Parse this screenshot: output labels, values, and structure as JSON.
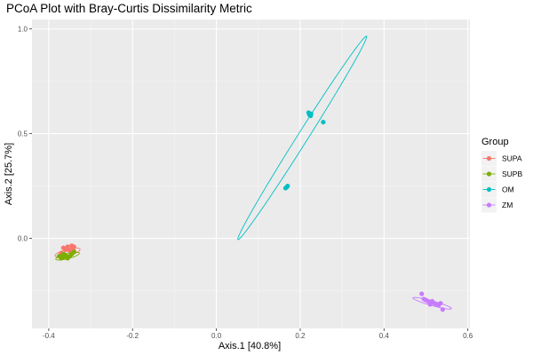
{
  "chart_data": {
    "type": "scatter",
    "title": "PCoA Plot with Bray-Curtis Dissimilarity Metric",
    "xlabel": "Axis.1   [40.8%]",
    "ylabel": "Axis.2   [25.7%]",
    "xlim": [
      -0.44,
      0.605
    ],
    "ylim": [
      -0.43,
      1.045
    ],
    "x_ticks": [
      -0.4,
      -0.2,
      0.0,
      0.2,
      0.4,
      0.6
    ],
    "x_tick_labels": [
      "-0.4",
      "-0.2",
      "0.0",
      "0.2",
      "0.4",
      "0.6"
    ],
    "y_ticks": [
      0.0,
      0.5,
      1.0
    ],
    "y_tick_labels": [
      "0.0",
      "0.5",
      "1.0"
    ],
    "grid": true,
    "legend_title": "Group",
    "legend_position": "right",
    "series": [
      {
        "name": "SUPA",
        "color": "#F8766D",
        "points": [
          [
            -0.355,
            -0.04
          ],
          [
            -0.345,
            -0.035
          ],
          [
            -0.34,
            -0.04
          ],
          [
            -0.365,
            -0.045
          ],
          [
            -0.36,
            -0.055
          ],
          [
            -0.37,
            -0.07
          ],
          [
            -0.35,
            -0.06
          ],
          [
            -0.345,
            -0.05
          ],
          [
            -0.34,
            -0.06
          ]
        ],
        "ellipse": {
          "cx": -0.355,
          "cy": -0.068,
          "rx": 0.034,
          "ry": 0.014,
          "angle": 32
        }
      },
      {
        "name": "SUPB",
        "color": "#7CAE00",
        "points": [
          [
            -0.375,
            -0.085
          ],
          [
            -0.365,
            -0.09
          ],
          [
            -0.36,
            -0.08
          ],
          [
            -0.355,
            -0.095
          ],
          [
            -0.35,
            -0.085
          ],
          [
            -0.345,
            -0.075
          ],
          [
            -0.34,
            -0.065
          ],
          [
            -0.365,
            -0.075
          ],
          [
            -0.37,
            -0.095
          ]
        ],
        "ellipse": {
          "cx": -0.355,
          "cy": -0.085,
          "rx": 0.032,
          "ry": 0.011,
          "angle": 30
        }
      },
      {
        "name": "OM",
        "color": "#00BFC4",
        "points": [
          [
            0.165,
            0.24
          ],
          [
            0.17,
            0.25
          ],
          [
            0.168,
            0.245
          ],
          [
            0.222,
            0.59
          ],
          [
            0.225,
            0.585
          ],
          [
            0.22,
            0.6
          ],
          [
            0.226,
            0.595
          ],
          [
            0.255,
            0.555
          ]
        ],
        "ellipse": {
          "cx": 0.205,
          "cy": 0.48,
          "rx": 0.51,
          "ry": 0.014,
          "angle": 72.5
        }
      },
      {
        "name": "ZM",
        "color": "#C77CFF",
        "points": [
          [
            0.49,
            -0.265
          ],
          [
            0.495,
            -0.29
          ],
          [
            0.505,
            -0.3
          ],
          [
            0.51,
            -0.305
          ],
          [
            0.515,
            -0.3
          ],
          [
            0.52,
            -0.31
          ],
          [
            0.525,
            -0.315
          ],
          [
            0.53,
            -0.32
          ],
          [
            0.535,
            -0.31
          ],
          [
            0.54,
            -0.34
          ],
          [
            0.5,
            -0.295
          ],
          [
            0.51,
            -0.315
          ]
        ],
        "ellipse": {
          "cx": 0.515,
          "cy": -0.31,
          "rx": 0.053,
          "ry": 0.01,
          "angle": -30
        }
      }
    ]
  }
}
